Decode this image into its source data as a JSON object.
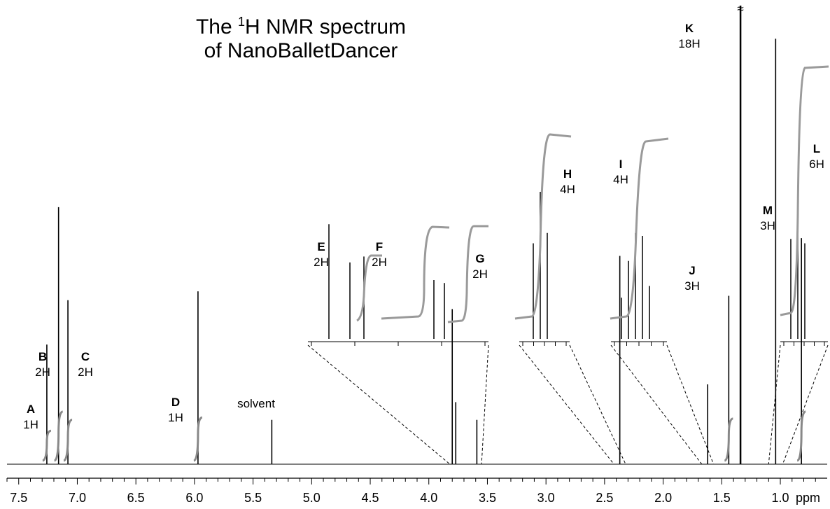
{
  "chart_data": {
    "type": "line",
    "title_line1_prefix": "The ",
    "title_sup": "1",
    "title_line1_suffix": "H NMR spectrum",
    "title_line2": "of NanoBalletDancer",
    "x_unit": "ppm",
    "xlim": [
      7.6,
      0.6
    ],
    "x_ticks": [
      "7.5",
      "7.0",
      "6.5",
      "6.0",
      "5.5",
      "5.0",
      "4.5",
      "4.0",
      "3.5",
      "3.0",
      "2.5",
      "2.0",
      "1.5",
      "1.0"
    ],
    "x_tick_values": [
      7.5,
      7.0,
      6.5,
      6.0,
      5.5,
      5.0,
      4.5,
      4.0,
      3.5,
      3.0,
      2.5,
      2.0,
      1.5,
      1.0
    ],
    "peaks": [
      {
        "ppm": 7.26,
        "height": 0.27,
        "label": "A",
        "count": "1H"
      },
      {
        "ppm": 7.16,
        "height": 0.58,
        "label": "B",
        "count": "2H"
      },
      {
        "ppm": 7.08,
        "height": 0.37,
        "label": "C",
        "count": "2H"
      },
      {
        "ppm": 5.97,
        "height": 0.39,
        "label": "D",
        "count": "1H"
      },
      {
        "ppm": 5.34,
        "height": 0.1,
        "label": "solvent",
        "count": ""
      },
      {
        "ppm": 3.8,
        "height": 0.35,
        "label": "E",
        "count": "2H"
      },
      {
        "ppm": 3.77,
        "height": 0.14,
        "label": "F",
        "count": "2H"
      },
      {
        "ppm": 3.59,
        "height": 0.1,
        "label": "G",
        "count": "2H"
      },
      {
        "ppm": 2.37,
        "height": 0.47,
        "label": "H",
        "count": "4H"
      },
      {
        "ppm": 1.62,
        "height": 0.18,
        "label": "I",
        "count": "4H"
      },
      {
        "ppm": 1.44,
        "height": 0.38,
        "label": "J",
        "count": "3H"
      },
      {
        "ppm": 1.34,
        "height": 1.0,
        "label": "K",
        "count": "18H"
      },
      {
        "ppm": 1.04,
        "height": 0.96,
        "label": "L",
        "count": "6H"
      },
      {
        "ppm": 0.82,
        "height": 0.51,
        "label": "M",
        "count": "3H"
      }
    ],
    "break_symbol": "≈"
  }
}
